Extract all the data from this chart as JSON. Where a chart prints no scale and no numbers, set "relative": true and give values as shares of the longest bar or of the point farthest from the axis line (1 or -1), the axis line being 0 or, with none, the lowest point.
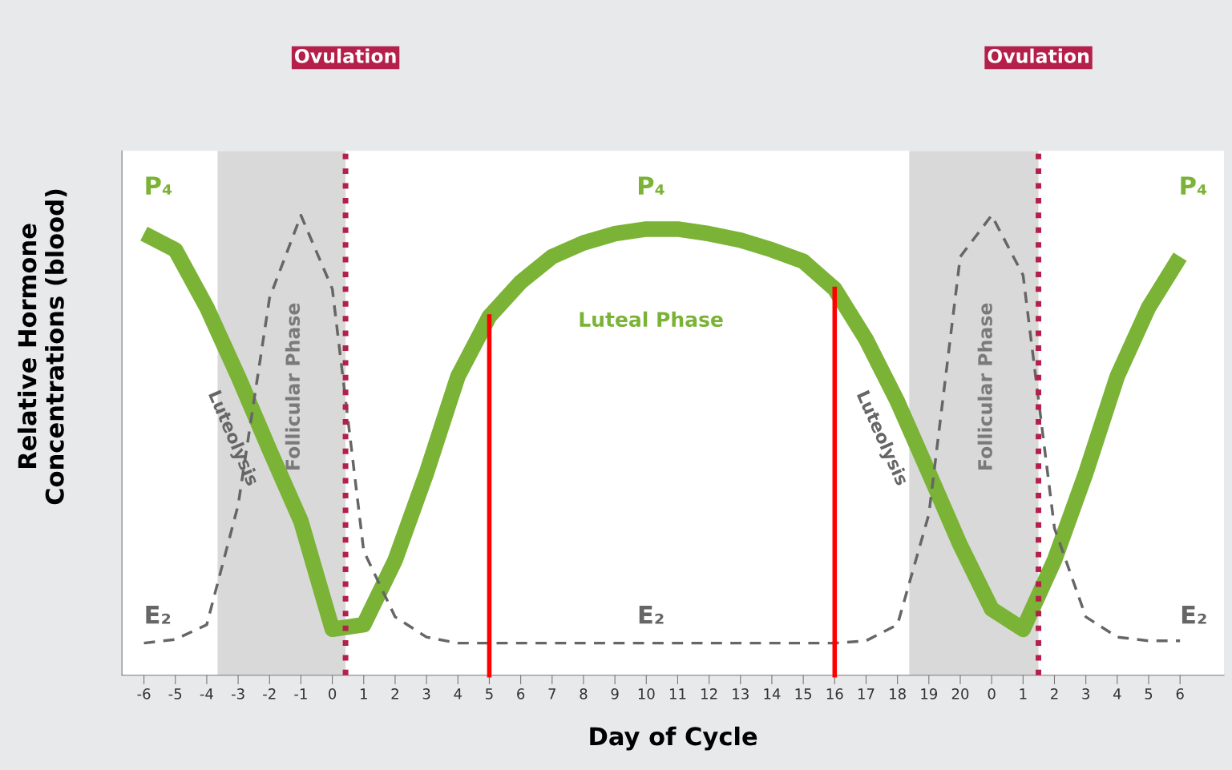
{
  "chart_data": {
    "type": "line",
    "relative": true,
    "xlabel": "Day of Cycle",
    "ylabel": "Relative Hormone\nConcentrations (blood)",
    "categories": [
      "-6",
      "-5",
      "-4",
      "-3",
      "-2",
      "-1",
      "0",
      "1",
      "2",
      "3",
      "4",
      "5",
      "6",
      "7",
      "8",
      "9",
      "10",
      "11",
      "12",
      "13",
      "14",
      "15",
      "16",
      "17",
      "18",
      "19",
      "20",
      "0",
      "1",
      "2",
      "3",
      "4",
      "5",
      "6"
    ],
    "series": [
      {
        "name": "P₄",
        "color": "#7ab335",
        "line_style": "solid",
        "values": [
          0.96,
          0.925,
          0.8,
          0.65,
          0.49,
          0.335,
          0.1,
          0.11,
          0.25,
          0.44,
          0.65,
          0.78,
          0.855,
          0.91,
          0.94,
          0.96,
          0.97,
          0.97,
          0.96,
          0.946,
          0.925,
          0.9,
          0.84,
          0.73,
          0.595,
          0.44,
          0.283,
          0.144,
          0.1,
          0.25,
          0.44,
          0.65,
          0.8,
          0.91
        ]
      },
      {
        "name": "E₂",
        "color": "#666666",
        "line_style": "dashed",
        "values": [
          0.07,
          0.078,
          0.11,
          0.37,
          0.82,
          1.0,
          0.84,
          0.27,
          0.127,
          0.083,
          0.07,
          0.07,
          0.07,
          0.07,
          0.07,
          0.07,
          0.07,
          0.07,
          0.07,
          0.07,
          0.07,
          0.07,
          0.07,
          0.075,
          0.11,
          0.35,
          0.91,
          1.0,
          0.87,
          0.32,
          0.127,
          0.083,
          0.075,
          0.075
        ]
      }
    ],
    "ref_lines": [
      {
        "axis": "x",
        "value": "5",
        "color": "#ff0000",
        "line_style": "solid"
      },
      {
        "axis": "x",
        "value": "16",
        "color": "#ff0000",
        "line_style": "solid"
      }
    ],
    "annotations": [
      "Ovulation",
      "Ovulation",
      "Follicular Phase",
      "Follicular Phase",
      "P₄",
      "P₄",
      "E₂",
      "E₂",
      "Luteal Phase",
      "Luteolysis",
      "Luteolysis"
    ],
    "marker": "none",
    "grid": false,
    "legend": false
  }
}
